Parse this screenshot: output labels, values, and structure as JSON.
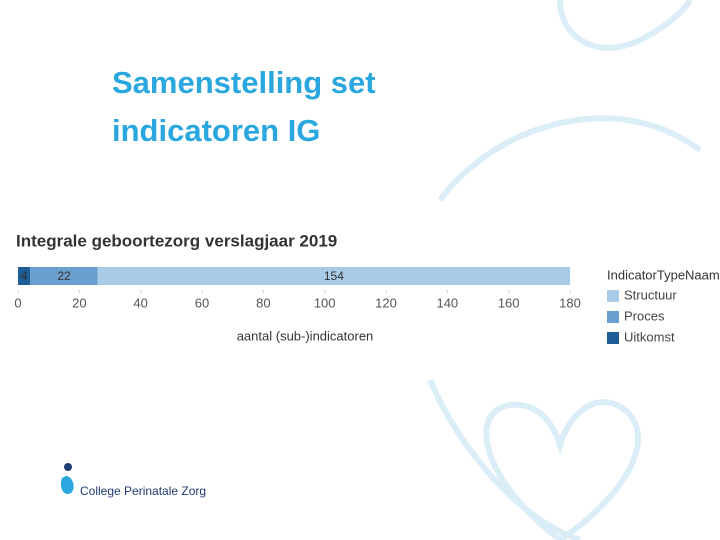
{
  "slide": {
    "title_lines": [
      "Samenstelling set",
      "indicatoren IG"
    ],
    "logo_text": "College Perinatale Zorg"
  },
  "chart_data": {
    "type": "stacked-bar-horizontal",
    "title": "Integrale geboortezorg verslagjaar 2019",
    "x_label": "aantal (sub-)indicatoren",
    "categories": [
      null
    ],
    "legend_title": "IndicatorTypeNaam",
    "legend_position": "right",
    "series": [
      {
        "name": "Structuur",
        "color": "#a8cbe7",
        "values": [
          154
        ]
      },
      {
        "name": "Proces",
        "color": "#6a9fcf",
        "values": [
          22
        ]
      },
      {
        "name": "Uitkomst",
        "color": "#1f5d98",
        "values": [
          4
        ]
      }
    ],
    "xlim": [
      0,
      180
    ],
    "xticks": [
      0,
      20,
      40,
      60,
      80,
      100,
      120,
      140,
      160,
      180
    ]
  }
}
